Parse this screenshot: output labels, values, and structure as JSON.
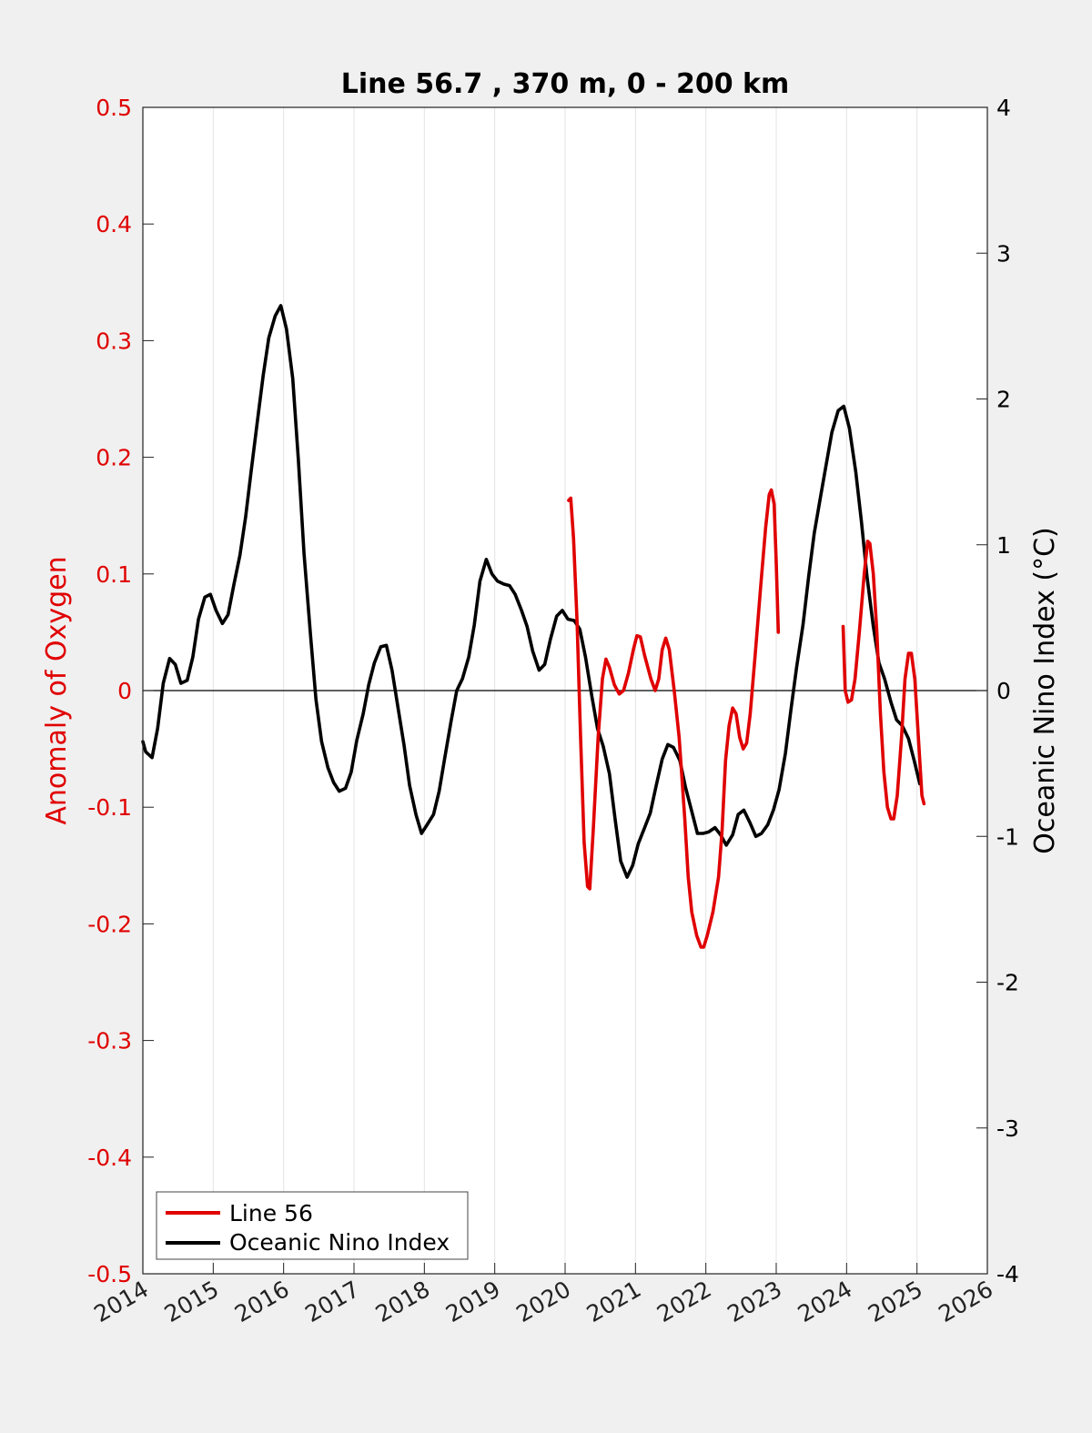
{
  "chart_data": {
    "type": "line",
    "title": "Line 56.7 , 370 m, 0 - 200 km",
    "xlabel": "",
    "ylabel_left": "Anomaly of Oxygen",
    "ylabel_right": "Oceanic Nino Index (°C)",
    "xlim": [
      2014,
      2026
    ],
    "ylim_left": [
      -0.5,
      0.5
    ],
    "ylim_right": [
      -4,
      4
    ],
    "x_ticks": [
      "2014",
      "2015",
      "2016",
      "2017",
      "2018",
      "2019",
      "2020",
      "2021",
      "2022",
      "2023",
      "2024",
      "2025",
      "2026"
    ],
    "y_ticks_left": [
      "0.5",
      "0.4",
      "0.3",
      "0.2",
      "0.1",
      "0",
      "-0.1",
      "-0.2",
      "-0.3",
      "-0.4",
      "-0.5"
    ],
    "y_ticks_right": [
      "4",
      "3",
      "2",
      "1",
      "0",
      "-1",
      "-2",
      "-3",
      "-4"
    ],
    "grid": "vertical",
    "legend_position": "bottom-left",
    "colors": {
      "line56": "#e00000",
      "oni": "#000000",
      "left_axis": "#e00000",
      "zero_line": "#000000"
    },
    "series": [
      {
        "name": "Line 56",
        "axis": "left",
        "segments": [
          [
            [
              2020.05,
              0.163
            ],
            [
              2020.08,
              0.165
            ],
            [
              2020.12,
              0.13
            ],
            [
              2020.17,
              0.06
            ],
            [
              2020.22,
              -0.04
            ],
            [
              2020.27,
              -0.13
            ],
            [
              2020.32,
              -0.168
            ],
            [
              2020.35,
              -0.17
            ],
            [
              2020.4,
              -0.12
            ],
            [
              2020.47,
              -0.04
            ],
            [
              2020.53,
              0.01
            ],
            [
              2020.58,
              0.027
            ],
            [
              2020.63,
              0.02
            ],
            [
              2020.7,
              0.005
            ],
            [
              2020.77,
              -0.003
            ],
            [
              2020.83,
              0.0
            ],
            [
              2020.9,
              0.015
            ],
            [
              2020.97,
              0.035
            ],
            [
              2021.02,
              0.047
            ],
            [
              2021.07,
              0.046
            ],
            [
              2021.13,
              0.03
            ],
            [
              2021.22,
              0.01
            ],
            [
              2021.28,
              0.0
            ],
            [
              2021.33,
              0.01
            ],
            [
              2021.38,
              0.035
            ],
            [
              2021.43,
              0.045
            ],
            [
              2021.48,
              0.035
            ],
            [
              2021.55,
              0.0
            ],
            [
              2021.62,
              -0.04
            ],
            [
              2021.7,
              -0.11
            ],
            [
              2021.75,
              -0.16
            ],
            [
              2021.8,
              -0.19
            ],
            [
              2021.87,
              -0.21
            ],
            [
              2021.93,
              -0.22
            ],
            [
              2021.97,
              -0.22
            ],
            [
              2022.02,
              -0.21
            ],
            [
              2022.1,
              -0.19
            ],
            [
              2022.18,
              -0.16
            ],
            [
              2022.23,
              -0.12
            ],
            [
              2022.28,
              -0.06
            ],
            [
              2022.33,
              -0.03
            ],
            [
              2022.38,
              -0.015
            ],
            [
              2022.43,
              -0.02
            ],
            [
              2022.48,
              -0.04
            ],
            [
              2022.53,
              -0.05
            ],
            [
              2022.58,
              -0.045
            ],
            [
              2022.63,
              -0.02
            ],
            [
              2022.7,
              0.03
            ],
            [
              2022.78,
              0.09
            ],
            [
              2022.85,
              0.14
            ],
            [
              2022.9,
              0.168
            ],
            [
              2022.93,
              0.172
            ],
            [
              2022.97,
              0.16
            ],
            [
              2023.0,
              0.11
            ],
            [
              2023.03,
              0.05
            ]
          ],
          [
            [
              2023.95,
              0.055
            ],
            [
              2023.98,
              0.0
            ],
            [
              2024.02,
              -0.01
            ],
            [
              2024.07,
              -0.008
            ],
            [
              2024.12,
              0.01
            ],
            [
              2024.18,
              0.05
            ],
            [
              2024.25,
              0.1
            ],
            [
              2024.3,
              0.128
            ],
            [
              2024.33,
              0.126
            ],
            [
              2024.38,
              0.1
            ],
            [
              2024.43,
              0.05
            ],
            [
              2024.48,
              -0.02
            ],
            [
              2024.53,
              -0.07
            ],
            [
              2024.58,
              -0.1
            ],
            [
              2024.63,
              -0.11
            ],
            [
              2024.67,
              -0.11
            ],
            [
              2024.72,
              -0.09
            ],
            [
              2024.78,
              -0.04
            ],
            [
              2024.83,
              0.01
            ],
            [
              2024.88,
              0.032
            ],
            [
              2024.92,
              0.032
            ],
            [
              2024.97,
              0.01
            ],
            [
              2025.02,
              -0.04
            ],
            [
              2025.07,
              -0.09
            ],
            [
              2025.1,
              -0.097
            ]
          ]
        ]
      },
      {
        "name": "Oceanic Nino Index",
        "axis": "right",
        "segments": [
          [
            [
              2014.0,
              -0.35
            ],
            [
              2014.04,
              -0.42
            ],
            [
              2014.13,
              -0.46
            ],
            [
              2014.21,
              -0.26
            ],
            [
              2014.29,
              0.05
            ],
            [
              2014.38,
              0.22
            ],
            [
              2014.46,
              0.18
            ],
            [
              2014.54,
              0.05
            ],
            [
              2014.63,
              0.07
            ],
            [
              2014.71,
              0.23
            ],
            [
              2014.79,
              0.49
            ],
            [
              2014.88,
              0.64
            ],
            [
              2014.96,
              0.66
            ],
            [
              2015.04,
              0.55
            ],
            [
              2015.13,
              0.46
            ],
            [
              2015.21,
              0.52
            ],
            [
              2015.29,
              0.72
            ],
            [
              2015.38,
              0.93
            ],
            [
              2015.46,
              1.19
            ],
            [
              2015.54,
              1.51
            ],
            [
              2015.63,
              1.86
            ],
            [
              2015.71,
              2.16
            ],
            [
              2015.79,
              2.42
            ],
            [
              2015.88,
              2.57
            ],
            [
              2015.96,
              2.64
            ],
            [
              2016.04,
              2.48
            ],
            [
              2016.13,
              2.14
            ],
            [
              2016.21,
              1.58
            ],
            [
              2016.29,
              0.94
            ],
            [
              2016.38,
              0.39
            ],
            [
              2016.46,
              -0.06
            ],
            [
              2016.54,
              -0.35
            ],
            [
              2016.63,
              -0.53
            ],
            [
              2016.71,
              -0.63
            ],
            [
              2016.79,
              -0.69
            ],
            [
              2016.88,
              -0.67
            ],
            [
              2016.96,
              -0.56
            ],
            [
              2017.04,
              -0.34
            ],
            [
              2017.13,
              -0.16
            ],
            [
              2017.21,
              0.04
            ],
            [
              2017.29,
              0.19
            ],
            [
              2017.38,
              0.3
            ],
            [
              2017.46,
              0.31
            ],
            [
              2017.54,
              0.14
            ],
            [
              2017.63,
              -0.13
            ],
            [
              2017.71,
              -0.37
            ],
            [
              2017.79,
              -0.65
            ],
            [
              2017.88,
              -0.85
            ],
            [
              2017.96,
              -0.98
            ],
            [
              2018.04,
              -0.92
            ],
            [
              2018.13,
              -0.85
            ],
            [
              2018.21,
              -0.69
            ],
            [
              2018.29,
              -0.46
            ],
            [
              2018.38,
              -0.21
            ],
            [
              2018.46,
              0.0
            ],
            [
              2018.54,
              0.08
            ],
            [
              2018.63,
              0.23
            ],
            [
              2018.71,
              0.45
            ],
            [
              2018.79,
              0.75
            ],
            [
              2018.88,
              0.9
            ],
            [
              2018.96,
              0.8
            ],
            [
              2019.04,
              0.75
            ],
            [
              2019.13,
              0.73
            ],
            [
              2019.21,
              0.72
            ],
            [
              2019.29,
              0.66
            ],
            [
              2019.38,
              0.55
            ],
            [
              2019.46,
              0.44
            ],
            [
              2019.54,
              0.27
            ],
            [
              2019.63,
              0.14
            ],
            [
              2019.71,
              0.18
            ],
            [
              2019.79,
              0.35
            ],
            [
              2019.88,
              0.51
            ],
            [
              2019.96,
              0.55
            ],
            [
              2020.04,
              0.49
            ],
            [
              2020.13,
              0.48
            ],
            [
              2020.21,
              0.42
            ],
            [
              2020.29,
              0.23
            ],
            [
              2020.38,
              -0.04
            ],
            [
              2020.46,
              -0.26
            ],
            [
              2020.54,
              -0.38
            ],
            [
              2020.63,
              -0.57
            ],
            [
              2020.71,
              -0.88
            ],
            [
              2020.79,
              -1.17
            ],
            [
              2020.88,
              -1.28
            ],
            [
              2020.96,
              -1.2
            ],
            [
              2021.04,
              -1.05
            ],
            [
              2021.13,
              -0.94
            ],
            [
              2021.21,
              -0.84
            ],
            [
              2021.29,
              -0.66
            ],
            [
              2021.38,
              -0.47
            ],
            [
              2021.46,
              -0.37
            ],
            [
              2021.54,
              -0.39
            ],
            [
              2021.63,
              -0.48
            ],
            [
              2021.71,
              -0.66
            ],
            [
              2021.79,
              -0.81
            ],
            [
              2021.88,
              -0.98
            ],
            [
              2021.96,
              -0.98
            ],
            [
              2022.04,
              -0.97
            ],
            [
              2022.13,
              -0.94
            ],
            [
              2022.21,
              -0.99
            ],
            [
              2022.29,
              -1.06
            ],
            [
              2022.38,
              -0.99
            ],
            [
              2022.46,
              -0.85
            ],
            [
              2022.54,
              -0.82
            ],
            [
              2022.63,
              -0.91
            ],
            [
              2022.71,
              -1.0
            ],
            [
              2022.79,
              -0.98
            ],
            [
              2022.88,
              -0.92
            ],
            [
              2022.96,
              -0.82
            ],
            [
              2023.04,
              -0.68
            ],
            [
              2023.13,
              -0.43
            ],
            [
              2023.21,
              -0.13
            ],
            [
              2023.29,
              0.16
            ],
            [
              2023.38,
              0.45
            ],
            [
              2023.46,
              0.78
            ],
            [
              2023.54,
              1.08
            ],
            [
              2023.63,
              1.33
            ],
            [
              2023.71,
              1.55
            ],
            [
              2023.79,
              1.77
            ],
            [
              2023.88,
              1.92
            ],
            [
              2023.96,
              1.95
            ],
            [
              2024.04,
              1.8
            ],
            [
              2024.13,
              1.5
            ],
            [
              2024.21,
              1.16
            ],
            [
              2024.29,
              0.78
            ],
            [
              2024.38,
              0.44
            ],
            [
              2024.46,
              0.19
            ],
            [
              2024.54,
              0.08
            ],
            [
              2024.63,
              -0.08
            ],
            [
              2024.71,
              -0.2
            ],
            [
              2024.79,
              -0.24
            ],
            [
              2024.88,
              -0.33
            ],
            [
              2024.96,
              -0.48
            ],
            [
              2025.04,
              -0.64
            ]
          ]
        ]
      }
    ]
  }
}
